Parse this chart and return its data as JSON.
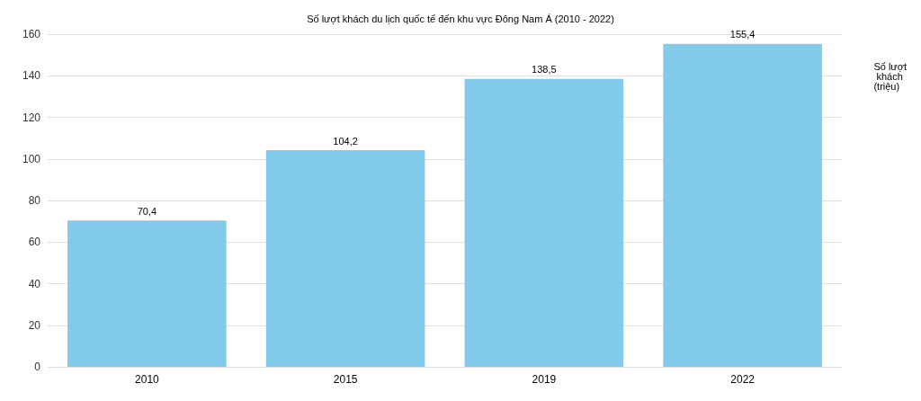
{
  "chart_data": {
    "type": "bar",
    "title": "Số lượt khách du lịch quốc tế đến khu vực Đông Nam Á (2010 - 2022)",
    "ylabel": "Số lượt khách (triệu)",
    "categories": [
      "2010",
      "2015",
      "2019",
      "2022"
    ],
    "values": [
      70.4,
      104.2,
      138.5,
      155.4
    ],
    "value_labels": [
      "70,4",
      "104,2",
      "138,5",
      "155,4"
    ],
    "color": "#82cbea",
    "ylim": [
      0,
      160
    ],
    "yticks": [
      0,
      20,
      40,
      60,
      80,
      100,
      120,
      140,
      160
    ],
    "grid": "y"
  }
}
